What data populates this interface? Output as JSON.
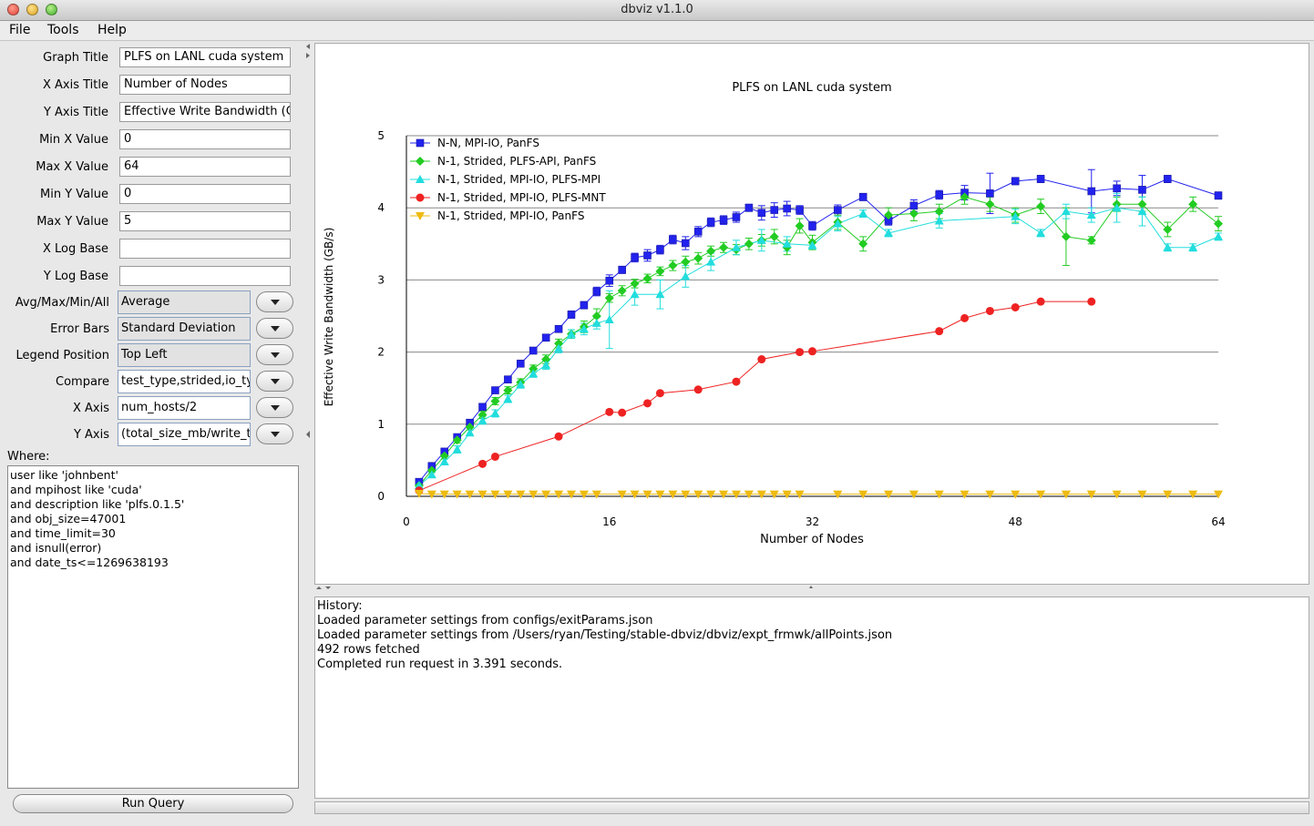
{
  "window": {
    "title": "dbviz v1.1.0"
  },
  "menu": {
    "items": [
      "File",
      "Tools",
      "Help"
    ]
  },
  "form": {
    "graph_title": {
      "label": "Graph Title",
      "value": "PLFS on LANL cuda system"
    },
    "x_axis_title": {
      "label": "X Axis Title",
      "value": "Number of Nodes"
    },
    "y_axis_title": {
      "label": "Y Axis Title",
      "value": "Effective Write Bandwidth (GE"
    },
    "min_x": {
      "label": "Min X Value",
      "value": "0"
    },
    "max_x": {
      "label": "Max X Value",
      "value": "64"
    },
    "min_y": {
      "label": "Min Y Value",
      "value": "0"
    },
    "max_y": {
      "label": "Max Y Value",
      "value": "5"
    },
    "x_log": {
      "label": "X Log Base",
      "value": ""
    },
    "y_log": {
      "label": "Y Log Base",
      "value": ""
    },
    "aggregate": {
      "label": "Avg/Max/Min/All",
      "value": "Average"
    },
    "error_bars": {
      "label": "Error Bars",
      "value": "Standard Deviation"
    },
    "legend_position": {
      "label": "Legend Position",
      "value": "Top Left"
    },
    "compare": {
      "label": "Compare",
      "value": "test_type,strided,io_typ"
    },
    "x_axis": {
      "label": "X Axis",
      "value": "num_hosts/2"
    },
    "y_axis": {
      "label": "Y Axis",
      "value": "(total_size_mb/write_t"
    }
  },
  "where": {
    "label": "Where:",
    "lines": [
      "user like 'johnbent'",
      "and mpihost like 'cuda'",
      "and description like 'plfs.0.1.5'",
      "and obj_size=47001",
      "and time_limit=30",
      "and isnull(error)",
      "and date_ts<=1269638193"
    ]
  },
  "run_button": "Run Query",
  "history": {
    "lines": [
      "History:",
      "Loaded parameter settings from configs/exitParams.json",
      "Loaded parameter settings from /Users/ryan/Testing/stable-dbviz/dbviz/expt_frmwk/allPoints.json",
      "492 rows fetched",
      "Completed run request in 3.391 seconds."
    ]
  },
  "chart_data": {
    "type": "line",
    "title": "PLFS on LANL cuda system",
    "xlabel": "Number of Nodes",
    "ylabel": "Effective Write Bandwidth (GB/s)",
    "xlim": [
      0,
      64
    ],
    "ylim": [
      0,
      5
    ],
    "xticks": [
      0,
      16,
      32,
      48,
      64
    ],
    "yticks": [
      0,
      1,
      2,
      3,
      4,
      5
    ],
    "grid": "horizontal",
    "legend_position": "top-left",
    "series": [
      {
        "name": "N-N, MPI-IO, PanFS",
        "color": "#2222ee",
        "marker": "square",
        "x": [
          1,
          2,
          3,
          4,
          5,
          6,
          7,
          8,
          9,
          10,
          11,
          12,
          13,
          14,
          15,
          16,
          17,
          18,
          19,
          20,
          21,
          22,
          23,
          24,
          25,
          26,
          27,
          28,
          29,
          30,
          31,
          32,
          34,
          36,
          38,
          40,
          42,
          44,
          46,
          48,
          50,
          54,
          56,
          58,
          60,
          64
        ],
        "y": [
          0.2,
          0.42,
          0.62,
          0.82,
          1.02,
          1.24,
          1.47,
          1.62,
          1.84,
          2.02,
          2.2,
          2.32,
          2.52,
          2.65,
          2.84,
          2.99,
          3.14,
          3.31,
          3.34,
          3.42,
          3.56,
          3.51,
          3.67,
          3.8,
          3.83,
          3.87,
          4.0,
          3.93,
          3.97,
          3.99,
          3.97,
          3.75,
          3.97,
          4.15,
          3.82,
          4.03,
          4.18,
          4.21,
          4.2,
          4.37,
          4.4,
          4.23,
          4.27,
          4.25,
          4.4,
          4.17
        ],
        "err": [
          0.03,
          0.03,
          0.04,
          0.04,
          0.04,
          0.04,
          0.04,
          0.04,
          0.04,
          0.04,
          0.04,
          0.04,
          0.05,
          0.05,
          0.06,
          0.08,
          0.05,
          0.06,
          0.08,
          0.06,
          0.06,
          0.09,
          0.07,
          0.06,
          0.06,
          0.07,
          0.05,
          0.1,
          0.1,
          0.1,
          0.06,
          0.06,
          0.07,
          0.05,
          0.06,
          0.08,
          0.06,
          0.1,
          0.28,
          0.05,
          0.05,
          0.3,
          0.1,
          0.2,
          0.05,
          0.05
        ]
      },
      {
        "name": "N-1, Strided, PLFS-API, PanFS",
        "color": "#22cc22",
        "marker": "diamond",
        "x": [
          1,
          2,
          3,
          4,
          5,
          6,
          7,
          8,
          9,
          10,
          11,
          12,
          13,
          14,
          15,
          16,
          17,
          18,
          19,
          20,
          21,
          22,
          23,
          24,
          25,
          26,
          27,
          28,
          29,
          30,
          31,
          32,
          34,
          36,
          38,
          40,
          42,
          44,
          46,
          48,
          50,
          52,
          54,
          56,
          58,
          60,
          62,
          64
        ],
        "y": [
          0.15,
          0.36,
          0.56,
          0.78,
          0.96,
          1.13,
          1.32,
          1.47,
          1.58,
          1.77,
          1.9,
          2.12,
          2.25,
          2.35,
          2.5,
          2.75,
          2.85,
          2.95,
          3.02,
          3.12,
          3.2,
          3.25,
          3.3,
          3.4,
          3.45,
          3.42,
          3.5,
          3.55,
          3.6,
          3.45,
          3.75,
          3.52,
          3.8,
          3.5,
          3.9,
          3.92,
          3.95,
          4.15,
          4.05,
          3.9,
          4.02,
          3.6,
          3.55,
          4.05,
          4.05,
          3.7,
          4.05,
          3.78
        ],
        "err": [
          0.03,
          0.03,
          0.04,
          0.04,
          0.04,
          0.05,
          0.05,
          0.05,
          0.05,
          0.05,
          0.06,
          0.06,
          0.06,
          0.08,
          0.1,
          0.06,
          0.07,
          0.06,
          0.06,
          0.06,
          0.07,
          0.08,
          0.08,
          0.07,
          0.07,
          0.07,
          0.08,
          0.08,
          0.1,
          0.1,
          0.1,
          0.1,
          0.1,
          0.1,
          0.1,
          0.1,
          0.1,
          0.1,
          0.1,
          0.1,
          0.1,
          0.4,
          0.05,
          0.1,
          0.1,
          0.1,
          0.1,
          0.1
        ]
      },
      {
        "name": "N-1, Strided, MPI-IO, PLFS-MPI",
        "color": "#22dddd",
        "marker": "triangle-up",
        "x": [
          1,
          2,
          3,
          4,
          5,
          6,
          7,
          8,
          9,
          10,
          11,
          12,
          13,
          14,
          15,
          16,
          18,
          20,
          22,
          24,
          26,
          28,
          30,
          32,
          34,
          36,
          38,
          42,
          48,
          50,
          52,
          54,
          56,
          58,
          60,
          62,
          64
        ],
        "y": [
          0.15,
          0.3,
          0.48,
          0.65,
          0.88,
          1.05,
          1.15,
          1.35,
          1.55,
          1.7,
          1.82,
          2.05,
          2.25,
          2.32,
          2.4,
          2.45,
          2.8,
          2.8,
          3.05,
          3.25,
          3.45,
          3.55,
          3.5,
          3.48,
          3.78,
          3.92,
          3.65,
          3.82,
          3.88,
          3.65,
          3.95,
          3.9,
          4.0,
          3.95,
          3.45,
          3.45,
          3.6
        ],
        "err": [
          0.03,
          0.03,
          0.04,
          0.05,
          0.04,
          0.05,
          0.05,
          0.05,
          0.05,
          0.05,
          0.06,
          0.06,
          0.06,
          0.08,
          0.08,
          0.4,
          0.15,
          0.2,
          0.15,
          0.12,
          0.1,
          0.15,
          0.1,
          0.05,
          0.1,
          0.05,
          0.05,
          0.1,
          0.1,
          0.05,
          0.1,
          0.1,
          0.2,
          0.2,
          0.05,
          0.05,
          0.05
        ]
      },
      {
        "name": "N-1, Strided, MPI-IO, PLFS-MNT",
        "color": "#ee2222",
        "marker": "circle",
        "x": [
          1,
          6,
          7,
          12,
          16,
          17,
          19,
          20,
          23,
          26,
          28,
          31,
          32,
          42,
          44,
          46,
          48,
          50,
          54
        ],
        "y": [
          0.08,
          0.45,
          0.55,
          0.83,
          1.17,
          1.16,
          1.29,
          1.43,
          1.48,
          1.59,
          1.9,
          2.0,
          2.01,
          2.29,
          2.47,
          2.57,
          2.62,
          2.7,
          2.7
        ],
        "err": [
          0,
          0,
          0,
          0,
          0,
          0,
          0,
          0,
          0,
          0,
          0,
          0,
          0,
          0,
          0,
          0,
          0,
          0,
          0
        ]
      },
      {
        "name": "N-1, Strided, MPI-IO, PanFS",
        "color": "#eebb11",
        "marker": "triangle-down",
        "x": [
          1,
          2,
          3,
          4,
          5,
          6,
          7,
          8,
          9,
          10,
          11,
          12,
          13,
          14,
          15,
          17,
          18,
          19,
          20,
          21,
          22,
          23,
          24,
          25,
          26,
          27,
          28,
          29,
          30,
          31,
          34,
          36,
          38,
          40,
          42,
          44,
          46,
          48,
          50,
          52,
          54,
          56,
          58,
          60,
          62,
          64
        ],
        "y": [
          0.04,
          0.03,
          0.03,
          0.03,
          0.03,
          0.03,
          0.03,
          0.03,
          0.03,
          0.03,
          0.03,
          0.03,
          0.03,
          0.03,
          0.03,
          0.03,
          0.03,
          0.03,
          0.03,
          0.03,
          0.03,
          0.03,
          0.03,
          0.03,
          0.03,
          0.03,
          0.03,
          0.03,
          0.03,
          0.03,
          0.03,
          0.03,
          0.03,
          0.03,
          0.03,
          0.03,
          0.03,
          0.03,
          0.03,
          0.03,
          0.03,
          0.03,
          0.03,
          0.03,
          0.03,
          0.03
        ],
        "err": []
      }
    ]
  }
}
